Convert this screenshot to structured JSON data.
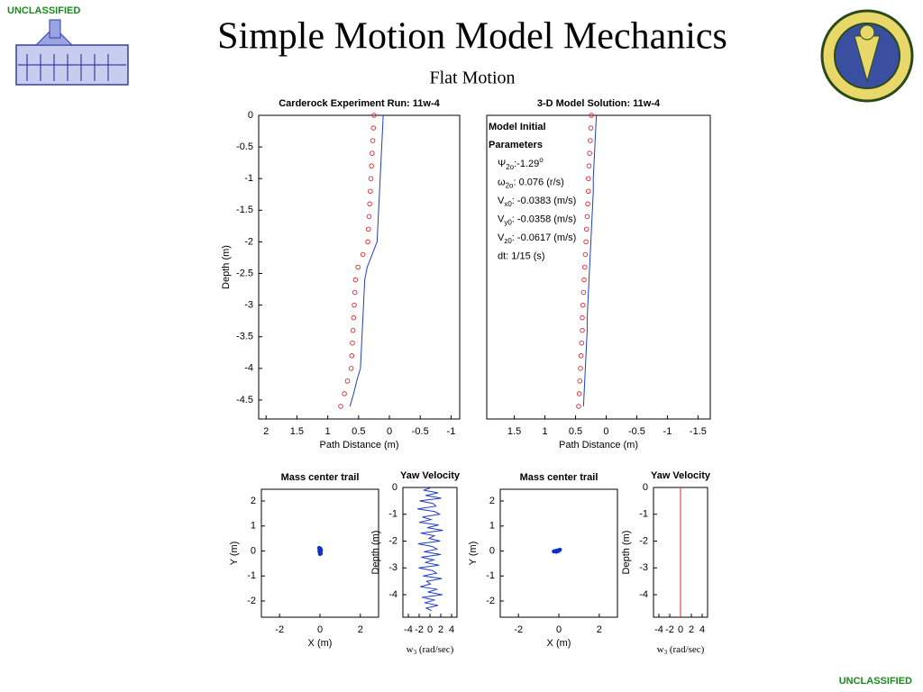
{
  "header": {
    "mark_top": "UNCLASSIFIED",
    "mark_bottom": "UNCLASSIFIED",
    "title": "Simple Motion Model Mechanics",
    "subtitle": "Flat Motion"
  },
  "chart_data": [
    {
      "type": "line",
      "title": "Carderock Experiment Run: 11w-4",
      "xlabel": "Path Distance (m)",
      "ylabel": "Depth (m)",
      "xlim": [
        2.12,
        -1.14
      ],
      "ylim": [
        -4.8,
        0
      ],
      "xticks": [
        2,
        1.5,
        1,
        0.5,
        0,
        -0.5,
        -1
      ],
      "yticks": [
        0,
        -0.5,
        -1,
        -1.5,
        -2,
        -2.5,
        -3,
        -3.5,
        -4,
        -4.5
      ],
      "series": [
        {
          "style": "line",
          "color": "#1f3fbf",
          "x": [
            0.1,
            0.11,
            0.12,
            0.13,
            0.14,
            0.15,
            0.16,
            0.17,
            0.18,
            0.19,
            0.2,
            0.28,
            0.36,
            0.4,
            0.41,
            0.42,
            0.43,
            0.44,
            0.45,
            0.46,
            0.47,
            0.53,
            0.58,
            0.64
          ],
          "values": [
            0,
            -0.2,
            -0.4,
            -0.6,
            -0.8,
            -1.0,
            -1.2,
            -1.4,
            -1.6,
            -1.8,
            -2.0,
            -2.2,
            -2.4,
            -2.6,
            -2.8,
            -3.0,
            -3.2,
            -3.4,
            -3.6,
            -3.8,
            -4.0,
            -4.2,
            -4.4,
            -4.6
          ]
        },
        {
          "style": "markers",
          "color": "#d9282f",
          "x": [
            0.25,
            0.26,
            0.27,
            0.28,
            0.29,
            0.3,
            0.31,
            0.32,
            0.33,
            0.34,
            0.35,
            0.43,
            0.51,
            0.55,
            0.56,
            0.57,
            0.58,
            0.59,
            0.6,
            0.61,
            0.62,
            0.68,
            0.73,
            0.79
          ],
          "values": [
            0,
            -0.2,
            -0.4,
            -0.6,
            -0.8,
            -1.0,
            -1.2,
            -1.4,
            -1.6,
            -1.8,
            -2.0,
            -2.2,
            -2.4,
            -2.6,
            -2.8,
            -3.0,
            -3.2,
            -3.4,
            -3.6,
            -3.8,
            -4.0,
            -4.2,
            -4.4,
            -4.6
          ]
        }
      ]
    },
    {
      "type": "line",
      "title": "3-D Model Solution: 11w-4",
      "xlabel": "Path Distance (m)",
      "xlim": [
        1.95,
        -1.7
      ],
      "ylim": [
        -4.8,
        0
      ],
      "xticks": [
        1.5,
        1,
        0.5,
        0,
        -0.5,
        -1,
        -1.5
      ],
      "annotation": {
        "heading": [
          "Model Initial",
          "Parameters"
        ],
        "lines": [
          {
            "sym": "Ψ",
            "sub": "2o",
            "text": ":-1.29",
            "sup": "o"
          },
          {
            "sym": "ω",
            "sub": "2o",
            "text": ": 0.076 (r/s)"
          },
          {
            "sym": "V",
            "sub": "x0",
            "text": ": -0.0383 (m/s)"
          },
          {
            "sym": "V",
            "sub": "y0",
            "text": ": -0.0358 (m/s)"
          },
          {
            "sym": "V",
            "sub": "z0",
            "text": ": -0.0617 (m/s)"
          },
          {
            "sym": "dt:",
            "text": "   1/15 (s)"
          }
        ]
      },
      "series": [
        {
          "style": "line",
          "color": "#1f3fbf",
          "x": [
            0.16,
            0.17,
            0.18,
            0.19,
            0.2,
            0.21,
            0.21,
            0.22,
            0.23,
            0.24,
            0.25,
            0.26,
            0.27,
            0.28,
            0.29,
            0.3,
            0.31,
            0.31,
            0.32,
            0.33,
            0.34,
            0.35,
            0.36,
            0.37
          ],
          "values": [
            0,
            -0.2,
            -0.4,
            -0.6,
            -0.8,
            -1.0,
            -1.2,
            -1.4,
            -1.6,
            -1.8,
            -2.0,
            -2.2,
            -2.4,
            -2.6,
            -2.8,
            -3.0,
            -3.2,
            -3.4,
            -3.6,
            -3.8,
            -4.0,
            -4.2,
            -4.4,
            -4.6
          ]
        },
        {
          "style": "markers",
          "color": "#d9282f",
          "x": [
            0.24,
            0.25,
            0.26,
            0.27,
            0.28,
            0.29,
            0.29,
            0.3,
            0.31,
            0.32,
            0.33,
            0.34,
            0.35,
            0.36,
            0.37,
            0.38,
            0.39,
            0.39,
            0.4,
            0.41,
            0.42,
            0.43,
            0.44,
            0.45
          ],
          "values": [
            0,
            -0.2,
            -0.4,
            -0.6,
            -0.8,
            -1.0,
            -1.2,
            -1.4,
            -1.6,
            -1.8,
            -2.0,
            -2.2,
            -2.4,
            -2.6,
            -2.8,
            -3.0,
            -3.2,
            -3.4,
            -3.6,
            -3.8,
            -4.0,
            -4.2,
            -4.4,
            -4.6
          ]
        }
      ]
    },
    {
      "type": "scatter",
      "title": "Mass center trail",
      "xlabel": "X (m)",
      "ylabel": "Y (m)",
      "xlim": [
        -2.9,
        2.9
      ],
      "ylim": [
        -2.65,
        2.47
      ],
      "xticks": [
        -2,
        0,
        2
      ],
      "yticks": [
        2,
        1,
        0,
        -1,
        -2
      ],
      "series": [
        {
          "style": "markers",
          "color": "#1030c0",
          "x": [
            -0.04,
            -0.02,
            0,
            0.02,
            0.04,
            0.03,
            0,
            -0.03,
            0.01,
            0.05
          ],
          "values": [
            0.12,
            0.05,
            0,
            -0.05,
            -0.1,
            0.08,
            -0.12,
            -0.02,
            0.1,
            0.02
          ]
        }
      ]
    },
    {
      "type": "line",
      "title": "Yaw Velocity",
      "xlabel": {
        "text": "w",
        "sub": "3",
        "rest": " (rad/sec)"
      },
      "ylabel": "Depth (m)",
      "xlim": [
        -5,
        5
      ],
      "ylim": [
        -4.84,
        0
      ],
      "xticks": [
        -4,
        -2,
        0,
        2,
        4
      ],
      "yticks": [
        0,
        -1,
        -2,
        -3,
        -4
      ],
      "series": [
        {
          "style": "line",
          "color": "#1f3fbf",
          "x": [
            0.3,
            -1.2,
            1.5,
            -0.8,
            2.1,
            -1.9,
            0.6,
            1.1,
            -2.3,
            0.9,
            1.8,
            -1.4,
            0.2,
            -2.0,
            1.6,
            -0.5,
            2.4,
            -1.7,
            0.8,
            -0.2,
            1.9,
            -2.2,
            0.4,
            1.3,
            -1.1,
            2.0,
            -1.6,
            0.7,
            -0.9,
            1.7,
            -2.1,
            0.5,
            1.2,
            -1.3,
            2.2,
            -0.6,
            0.1,
            -1.8,
            1.4,
            -0.4,
            2.3,
            -1.5,
            0.9,
            -1.0,
            1.5,
            -0.7,
            0.3
          ],
          "values": [
            0,
            -0.1,
            -0.2,
            -0.3,
            -0.4,
            -0.5,
            -0.6,
            -0.7,
            -0.8,
            -0.9,
            -1.0,
            -1.1,
            -1.2,
            -1.3,
            -1.4,
            -1.5,
            -1.6,
            -1.7,
            -1.8,
            -1.9,
            -2.0,
            -2.1,
            -2.2,
            -2.3,
            -2.4,
            -2.5,
            -2.6,
            -2.7,
            -2.8,
            -2.9,
            -3.0,
            -3.1,
            -3.2,
            -3.3,
            -3.4,
            -3.5,
            -3.6,
            -3.7,
            -3.8,
            -3.9,
            -4.0,
            -4.1,
            -4.2,
            -4.3,
            -4.4,
            -4.5,
            -4.6
          ]
        }
      ]
    },
    {
      "type": "scatter",
      "title": "Mass center trail",
      "xlabel": "X (m)",
      "ylabel": "Y (m)",
      "xlim": [
        -2.9,
        2.9
      ],
      "ylim": [
        -2.65,
        2.47
      ],
      "xticks": [
        -2,
        0,
        2
      ],
      "yticks": [
        2,
        1,
        0,
        -1,
        -2
      ],
      "series": [
        {
          "style": "markers",
          "color": "#1030c0",
          "x": [
            -0.25,
            -0.2,
            -0.15,
            -0.1,
            -0.05,
            0,
            0.05,
            -0.12,
            -0.02
          ],
          "values": [
            -0.02,
            -0.01,
            0,
            0.01,
            0.02,
            0.03,
            0.05,
            -0.03,
            0.0
          ]
        }
      ]
    },
    {
      "type": "line",
      "title": "Yaw Velocity",
      "xlabel": {
        "text": "w",
        "sub": "3",
        "rest": " (rad/sec)"
      },
      "ylabel": "Depth (m)",
      "xlim": [
        -5,
        5
      ],
      "ylim": [
        -4.84,
        0
      ],
      "xticks": [
        -4,
        -2,
        0,
        2,
        4
      ],
      "yticks": [
        0,
        -1,
        -2,
        -3,
        -4
      ],
      "series": [
        {
          "style": "line",
          "color": "#d9282f",
          "x": [
            0,
            0
          ],
          "values": [
            0,
            -4.84
          ]
        }
      ]
    }
  ]
}
